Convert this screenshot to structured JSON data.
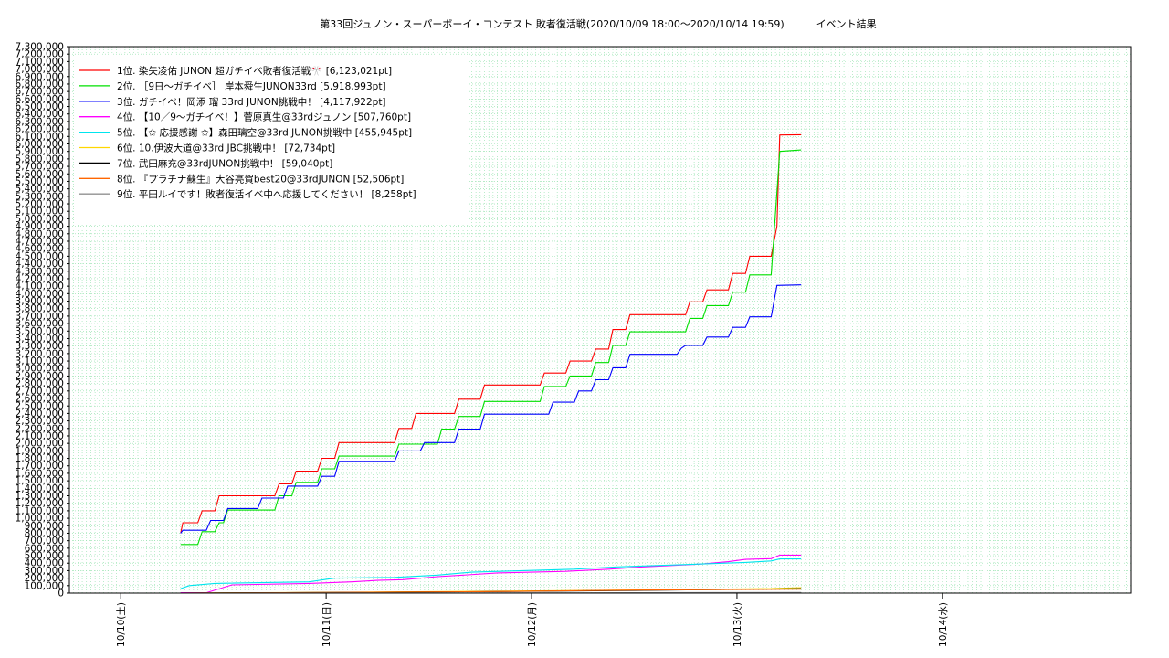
{
  "chart_data": {
    "type": "line",
    "title": "第33回ジュノン・スーパーボーイ・コンテスト 敗者復活戦(2020/10/09 18:00～2020/10/14 19:59)          イベント結果",
    "xlabel": "",
    "ylabel": "",
    "ylim": [
      0,
      7300000
    ],
    "ytick_step": 100000,
    "xlim": [
      "2020-10-09T18:00",
      "2020-10-14T22:00"
    ],
    "x_ticks": [
      {
        "x": "2020-10-10T00:00",
        "label": "10/10(土)"
      },
      {
        "x": "2020-10-11T00:00",
        "label": "10/11(日)"
      },
      {
        "x": "2020-10-12T00:00",
        "label": "10/12(月)"
      },
      {
        "x": "2020-10-13T00:00",
        "label": "10/13(火)"
      },
      {
        "x": "2020-10-14T00:00",
        "label": "10/14(水)"
      }
    ],
    "grid": true,
    "legend_position": "top-left",
    "series": [
      {
        "name": "1位. 染矢凌佑 JUNON 超ガチイベ敗者復活戦🎌 [6,123,021pt]",
        "color": "#ff0000",
        "points": [
          [
            "2020-10-10T07:00",
            800000
          ],
          [
            "2020-10-10T07:15",
            940000
          ],
          [
            "2020-10-10T09:00",
            940000
          ],
          [
            "2020-10-10T09:30",
            1100000
          ],
          [
            "2020-10-10T11:00",
            1100000
          ],
          [
            "2020-10-10T11:30",
            1300000
          ],
          [
            "2020-10-10T18:00",
            1300000
          ],
          [
            "2020-10-10T18:30",
            1460000
          ],
          [
            "2020-10-10T20:00",
            1460000
          ],
          [
            "2020-10-10T20:30",
            1630000
          ],
          [
            "2020-10-10T23:00",
            1630000
          ],
          [
            "2020-10-10T23:30",
            1800000
          ],
          [
            "2020-10-11T01:00",
            1800000
          ],
          [
            "2020-10-11T01:30",
            2010000
          ],
          [
            "2020-10-11T08:00",
            2010000
          ],
          [
            "2020-10-11T08:30",
            2200000
          ],
          [
            "2020-10-11T10:00",
            2200000
          ],
          [
            "2020-10-11T10:30",
            2400000
          ],
          [
            "2020-10-11T15:00",
            2400000
          ],
          [
            "2020-10-11T15:30",
            2590000
          ],
          [
            "2020-10-11T18:00",
            2590000
          ],
          [
            "2020-10-11T18:30",
            2780000
          ],
          [
            "2020-10-12T01:00",
            2780000
          ],
          [
            "2020-10-12T01:30",
            2940000
          ],
          [
            "2020-10-12T04:00",
            2940000
          ],
          [
            "2020-10-12T04:30",
            3100000
          ],
          [
            "2020-10-12T07:00",
            3100000
          ],
          [
            "2020-10-12T07:30",
            3260000
          ],
          [
            "2020-10-12T09:00",
            3260000
          ],
          [
            "2020-10-12T09:30",
            3520000
          ],
          [
            "2020-10-12T11:00",
            3520000
          ],
          [
            "2020-10-12T11:30",
            3720000
          ],
          [
            "2020-10-12T18:00",
            3720000
          ],
          [
            "2020-10-12T18:30",
            3890000
          ],
          [
            "2020-10-12T20:00",
            3890000
          ],
          [
            "2020-10-12T20:30",
            4050000
          ],
          [
            "2020-10-12T23:00",
            4050000
          ],
          [
            "2020-10-12T23:30",
            4270000
          ],
          [
            "2020-10-13T01:00",
            4270000
          ],
          [
            "2020-10-13T01:30",
            4500000
          ],
          [
            "2020-10-13T04:00",
            4500000
          ],
          [
            "2020-10-13T04:40",
            4900000
          ],
          [
            "2020-10-13T05:00",
            6120000
          ],
          [
            "2020-10-13T07:30",
            6123021
          ]
        ]
      },
      {
        "name": "2位. ［9日～ガチイベ］ 岸本舜生JUNON33rd [5,918,993pt]",
        "color": "#00e000",
        "points": [
          [
            "2020-10-10T07:00",
            650000
          ],
          [
            "2020-10-10T09:00",
            650000
          ],
          [
            "2020-10-10T09:30",
            820000
          ],
          [
            "2020-10-10T11:00",
            820000
          ],
          [
            "2020-10-10T11:30",
            940000
          ],
          [
            "2020-10-10T12:00",
            940000
          ],
          [
            "2020-10-10T12:30",
            1110000
          ],
          [
            "2020-10-10T18:00",
            1110000
          ],
          [
            "2020-10-10T18:30",
            1300000
          ],
          [
            "2020-10-10T20:00",
            1300000
          ],
          [
            "2020-10-10T20:30",
            1480000
          ],
          [
            "2020-10-10T23:00",
            1480000
          ],
          [
            "2020-10-10T23:30",
            1660000
          ],
          [
            "2020-10-11T01:00",
            1660000
          ],
          [
            "2020-10-11T01:30",
            1830000
          ],
          [
            "2020-10-11T08:00",
            1830000
          ],
          [
            "2020-10-11T08:30",
            1990000
          ],
          [
            "2020-10-11T13:00",
            1990000
          ],
          [
            "2020-10-11T13:30",
            2190000
          ],
          [
            "2020-10-11T15:00",
            2190000
          ],
          [
            "2020-10-11T15:30",
            2360000
          ],
          [
            "2020-10-11T18:00",
            2360000
          ],
          [
            "2020-10-11T18:30",
            2560000
          ],
          [
            "2020-10-12T01:00",
            2560000
          ],
          [
            "2020-10-12T01:30",
            2760000
          ],
          [
            "2020-10-12T04:00",
            2760000
          ],
          [
            "2020-10-12T04:30",
            2900000
          ],
          [
            "2020-10-12T07:00",
            2900000
          ],
          [
            "2020-10-12T07:30",
            3080000
          ],
          [
            "2020-10-12T09:00",
            3080000
          ],
          [
            "2020-10-12T09:30",
            3310000
          ],
          [
            "2020-10-12T11:00",
            3310000
          ],
          [
            "2020-10-12T11:30",
            3490000
          ],
          [
            "2020-10-12T18:00",
            3490000
          ],
          [
            "2020-10-12T18:30",
            3670000
          ],
          [
            "2020-10-12T20:00",
            3670000
          ],
          [
            "2020-10-12T20:30",
            3840000
          ],
          [
            "2020-10-12T23:00",
            3840000
          ],
          [
            "2020-10-12T23:30",
            4020000
          ],
          [
            "2020-10-13T01:00",
            4020000
          ],
          [
            "2020-10-13T01:30",
            4250000
          ],
          [
            "2020-10-13T04:00",
            4250000
          ],
          [
            "2020-10-13T05:00",
            5900000
          ],
          [
            "2020-10-13T07:30",
            5918993
          ]
        ]
      },
      {
        "name": "3位. ガチイベ！岡添 瑠 33rd JUNON挑戦中！ [4,117,922pt]",
        "color": "#0000ff",
        "points": [
          [
            "2020-10-10T07:00",
            800000
          ],
          [
            "2020-10-10T07:15",
            840000
          ],
          [
            "2020-10-10T10:00",
            840000
          ],
          [
            "2020-10-10T10:30",
            970000
          ],
          [
            "2020-10-10T12:00",
            970000
          ],
          [
            "2020-10-10T12:30",
            1130000
          ],
          [
            "2020-10-10T16:00",
            1130000
          ],
          [
            "2020-10-10T16:30",
            1270000
          ],
          [
            "2020-10-10T19:00",
            1270000
          ],
          [
            "2020-10-10T19:30",
            1430000
          ],
          [
            "2020-10-10T23:00",
            1430000
          ],
          [
            "2020-10-10T23:30",
            1560000
          ],
          [
            "2020-10-11T01:00",
            1560000
          ],
          [
            "2020-10-11T01:30",
            1760000
          ],
          [
            "2020-10-11T08:00",
            1760000
          ],
          [
            "2020-10-11T08:30",
            1900000
          ],
          [
            "2020-10-11T11:00",
            1900000
          ],
          [
            "2020-10-11T11:30",
            2010000
          ],
          [
            "2020-10-11T15:00",
            2010000
          ],
          [
            "2020-10-11T15:30",
            2190000
          ],
          [
            "2020-10-11T18:00",
            2190000
          ],
          [
            "2020-10-11T18:30",
            2390000
          ],
          [
            "2020-10-12T02:00",
            2390000
          ],
          [
            "2020-10-12T02:30",
            2550000
          ],
          [
            "2020-10-12T05:00",
            2550000
          ],
          [
            "2020-10-12T05:30",
            2700000
          ],
          [
            "2020-10-12T07:00",
            2700000
          ],
          [
            "2020-10-12T07:30",
            2850000
          ],
          [
            "2020-10-12T09:00",
            2850000
          ],
          [
            "2020-10-12T09:30",
            3010000
          ],
          [
            "2020-10-12T11:00",
            3010000
          ],
          [
            "2020-10-12T11:30",
            3190000
          ],
          [
            "2020-10-12T17:00",
            3190000
          ],
          [
            "2020-10-12T17:30",
            3270000
          ],
          [
            "2020-10-12T18:00",
            3310000
          ],
          [
            "2020-10-12T20:00",
            3310000
          ],
          [
            "2020-10-12T20:30",
            3420000
          ],
          [
            "2020-10-12T23:00",
            3420000
          ],
          [
            "2020-10-12T23:30",
            3550000
          ],
          [
            "2020-10-13T01:00",
            3550000
          ],
          [
            "2020-10-13T01:30",
            3690000
          ],
          [
            "2020-10-13T04:00",
            3690000
          ],
          [
            "2020-10-13T04:40",
            4110000
          ],
          [
            "2020-10-13T07:30",
            4117922
          ]
        ]
      },
      {
        "name": "4位. 【10／9～ガチイベ！】菅原真生@33rdジュノン [507,760pt]",
        "color": "#ff00ff",
        "points": [
          [
            "2020-10-10T07:00",
            5000
          ],
          [
            "2020-10-10T10:00",
            5000
          ],
          [
            "2020-10-10T13:00",
            110000
          ],
          [
            "2020-10-10T22:00",
            130000
          ],
          [
            "2020-10-11T03:00",
            150000
          ],
          [
            "2020-10-11T06:00",
            170000
          ],
          [
            "2020-10-11T09:00",
            180000
          ],
          [
            "2020-10-11T13:00",
            220000
          ],
          [
            "2020-10-11T16:00",
            240000
          ],
          [
            "2020-10-11T20:00",
            270000
          ],
          [
            "2020-10-12T04:00",
            290000
          ],
          [
            "2020-10-12T09:00",
            320000
          ],
          [
            "2020-10-12T13:00",
            350000
          ],
          [
            "2020-10-12T20:00",
            390000
          ],
          [
            "2020-10-12T23:00",
            420000
          ],
          [
            "2020-10-13T01:00",
            450000
          ],
          [
            "2020-10-13T04:00",
            460000
          ],
          [
            "2020-10-13T05:00",
            507760
          ],
          [
            "2020-10-13T07:30",
            507760
          ]
        ]
      },
      {
        "name": "5位. 【✩ 応援感謝 ✩】森田璃空@33rd JUNON挑戦中 [455,945pt]",
        "color": "#00e5ee",
        "points": [
          [
            "2020-10-10T07:00",
            60000
          ],
          [
            "2020-10-10T08:00",
            100000
          ],
          [
            "2020-10-10T11:00",
            130000
          ],
          [
            "2020-10-10T22:00",
            150000
          ],
          [
            "2020-10-11T01:00",
            200000
          ],
          [
            "2020-10-11T08:00",
            210000
          ],
          [
            "2020-10-11T13:00",
            240000
          ],
          [
            "2020-10-11T17:00",
            280000
          ],
          [
            "2020-10-12T05:00",
            320000
          ],
          [
            "2020-10-12T10:00",
            350000
          ],
          [
            "2020-10-12T15:00",
            370000
          ],
          [
            "2020-10-12T20:00",
            390000
          ],
          [
            "2020-10-13T01:00",
            410000
          ],
          [
            "2020-10-13T04:00",
            430000
          ],
          [
            "2020-10-13T05:00",
            455945
          ],
          [
            "2020-10-13T07:30",
            455945
          ]
        ]
      },
      {
        "name": "6位. 10.伊波大道@33rd JBC挑戦中！ [72,734pt]",
        "color": "#ffd700",
        "points": [
          [
            "2020-10-10T07:00",
            0
          ],
          [
            "2020-10-11T01:00",
            10000
          ],
          [
            "2020-10-11T18:00",
            25000
          ],
          [
            "2020-10-12T12:00",
            40000
          ],
          [
            "2020-10-12T23:00",
            55000
          ],
          [
            "2020-10-13T04:00",
            60000
          ],
          [
            "2020-10-13T07:30",
            72734
          ]
        ]
      },
      {
        "name": "7位. 武田麻充@33rdJUNON挑戦中！ [59,040pt]",
        "color": "#000000",
        "points": [
          [
            "2020-10-10T07:00",
            0
          ],
          [
            "2020-10-11T01:00",
            8000
          ],
          [
            "2020-10-11T18:00",
            20000
          ],
          [
            "2020-10-12T12:00",
            35000
          ],
          [
            "2020-10-12T23:00",
            50000
          ],
          [
            "2020-10-13T04:00",
            55000
          ],
          [
            "2020-10-13T07:30",
            59040
          ]
        ]
      },
      {
        "name": "8位. 『プラチナ蘇生』大谷亮賀best20@33rdJUNON [52,506pt]",
        "color": "#ff6600",
        "points": [
          [
            "2020-10-10T07:00",
            0
          ],
          [
            "2020-10-11T01:00",
            8000
          ],
          [
            "2020-10-11T18:00",
            20000
          ],
          [
            "2020-10-12T12:00",
            40000
          ],
          [
            "2020-10-12T23:00",
            48000
          ],
          [
            "2020-10-13T07:30",
            52506
          ]
        ]
      },
      {
        "name": "9位. 平田ルイです！敗者復活イベ中へ応援してください！ [8,258pt]",
        "color": "#909090",
        "points": [
          [
            "2020-10-10T07:00",
            0
          ],
          [
            "2020-10-12T00:00",
            4000
          ],
          [
            "2020-10-13T07:30",
            8258
          ]
        ]
      }
    ]
  }
}
